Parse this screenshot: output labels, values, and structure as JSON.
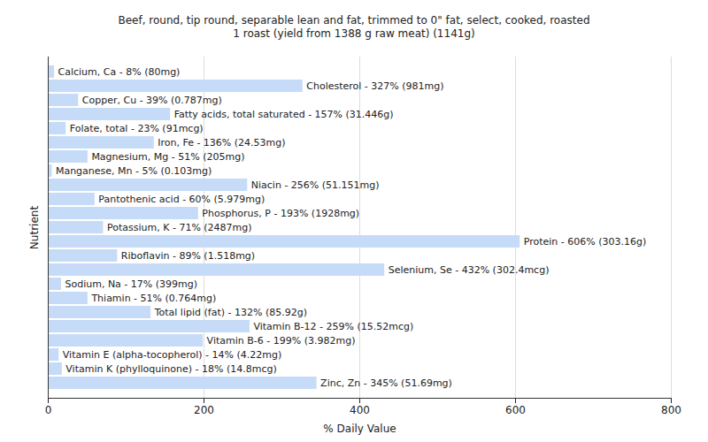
{
  "chart_data": {
    "type": "bar",
    "orientation": "horizontal",
    "title": "Beef, round, tip round, separable lean and fat, trimmed to 0\" fat, select, cooked, roasted",
    "subtitle": "1 roast (yield from 1388 g raw meat) (1141g)",
    "x_label": "% Daily Value",
    "y_label": "Nutrient",
    "categories": [
      "Calcium, Ca - 8% (80mg)",
      "Cholesterol - 327% (981mg)",
      "Copper, Cu - 39% (0.787mg)",
      "Fatty acids, total saturated - 157% (31.446g)",
      "Folate, total - 23% (91mcg)",
      "Iron, Fe - 136% (24.53mg)",
      "Magnesium, Mg - 51% (205mg)",
      "Manganese, Mn - 5% (0.103mg)",
      "Niacin - 256% (51.151mg)",
      "Pantothenic acid - 60% (5.979mg)",
      "Phosphorus, P - 193% (1928mg)",
      "Potassium, K - 71% (2487mg)",
      "Protein - 606% (303.16g)",
      "Riboflavin - 89% (1.518mg)",
      "Selenium, Se - 432% (302.4mcg)",
      "Sodium, Na - 17% (399mg)",
      "Thiamin - 51% (0.764mg)",
      "Total lipid (fat) - 132% (85.92g)",
      "Vitamin B-12 - 259% (15.52mcg)",
      "Vitamin B-6 - 199% (3.982mg)",
      "Vitamin E (alpha-tocopherol) - 14% (4.22mg)",
      "Vitamin K (phylloquinone) - 18% (14.8mcg)",
      "Zinc, Zn - 345% (51.69mg)"
    ],
    "values": [
      8,
      327,
      39,
      157,
      23,
      136,
      51,
      5,
      256,
      60,
      193,
      71,
      606,
      89,
      432,
      17,
      51,
      132,
      259,
      199,
      14,
      18,
      345
    ],
    "color": "#c6dbf7",
    "xlim": [
      0,
      800
    ],
    "xticks": [
      0,
      200,
      400,
      600,
      800
    ],
    "grid": true,
    "tick_labels": "x"
  }
}
